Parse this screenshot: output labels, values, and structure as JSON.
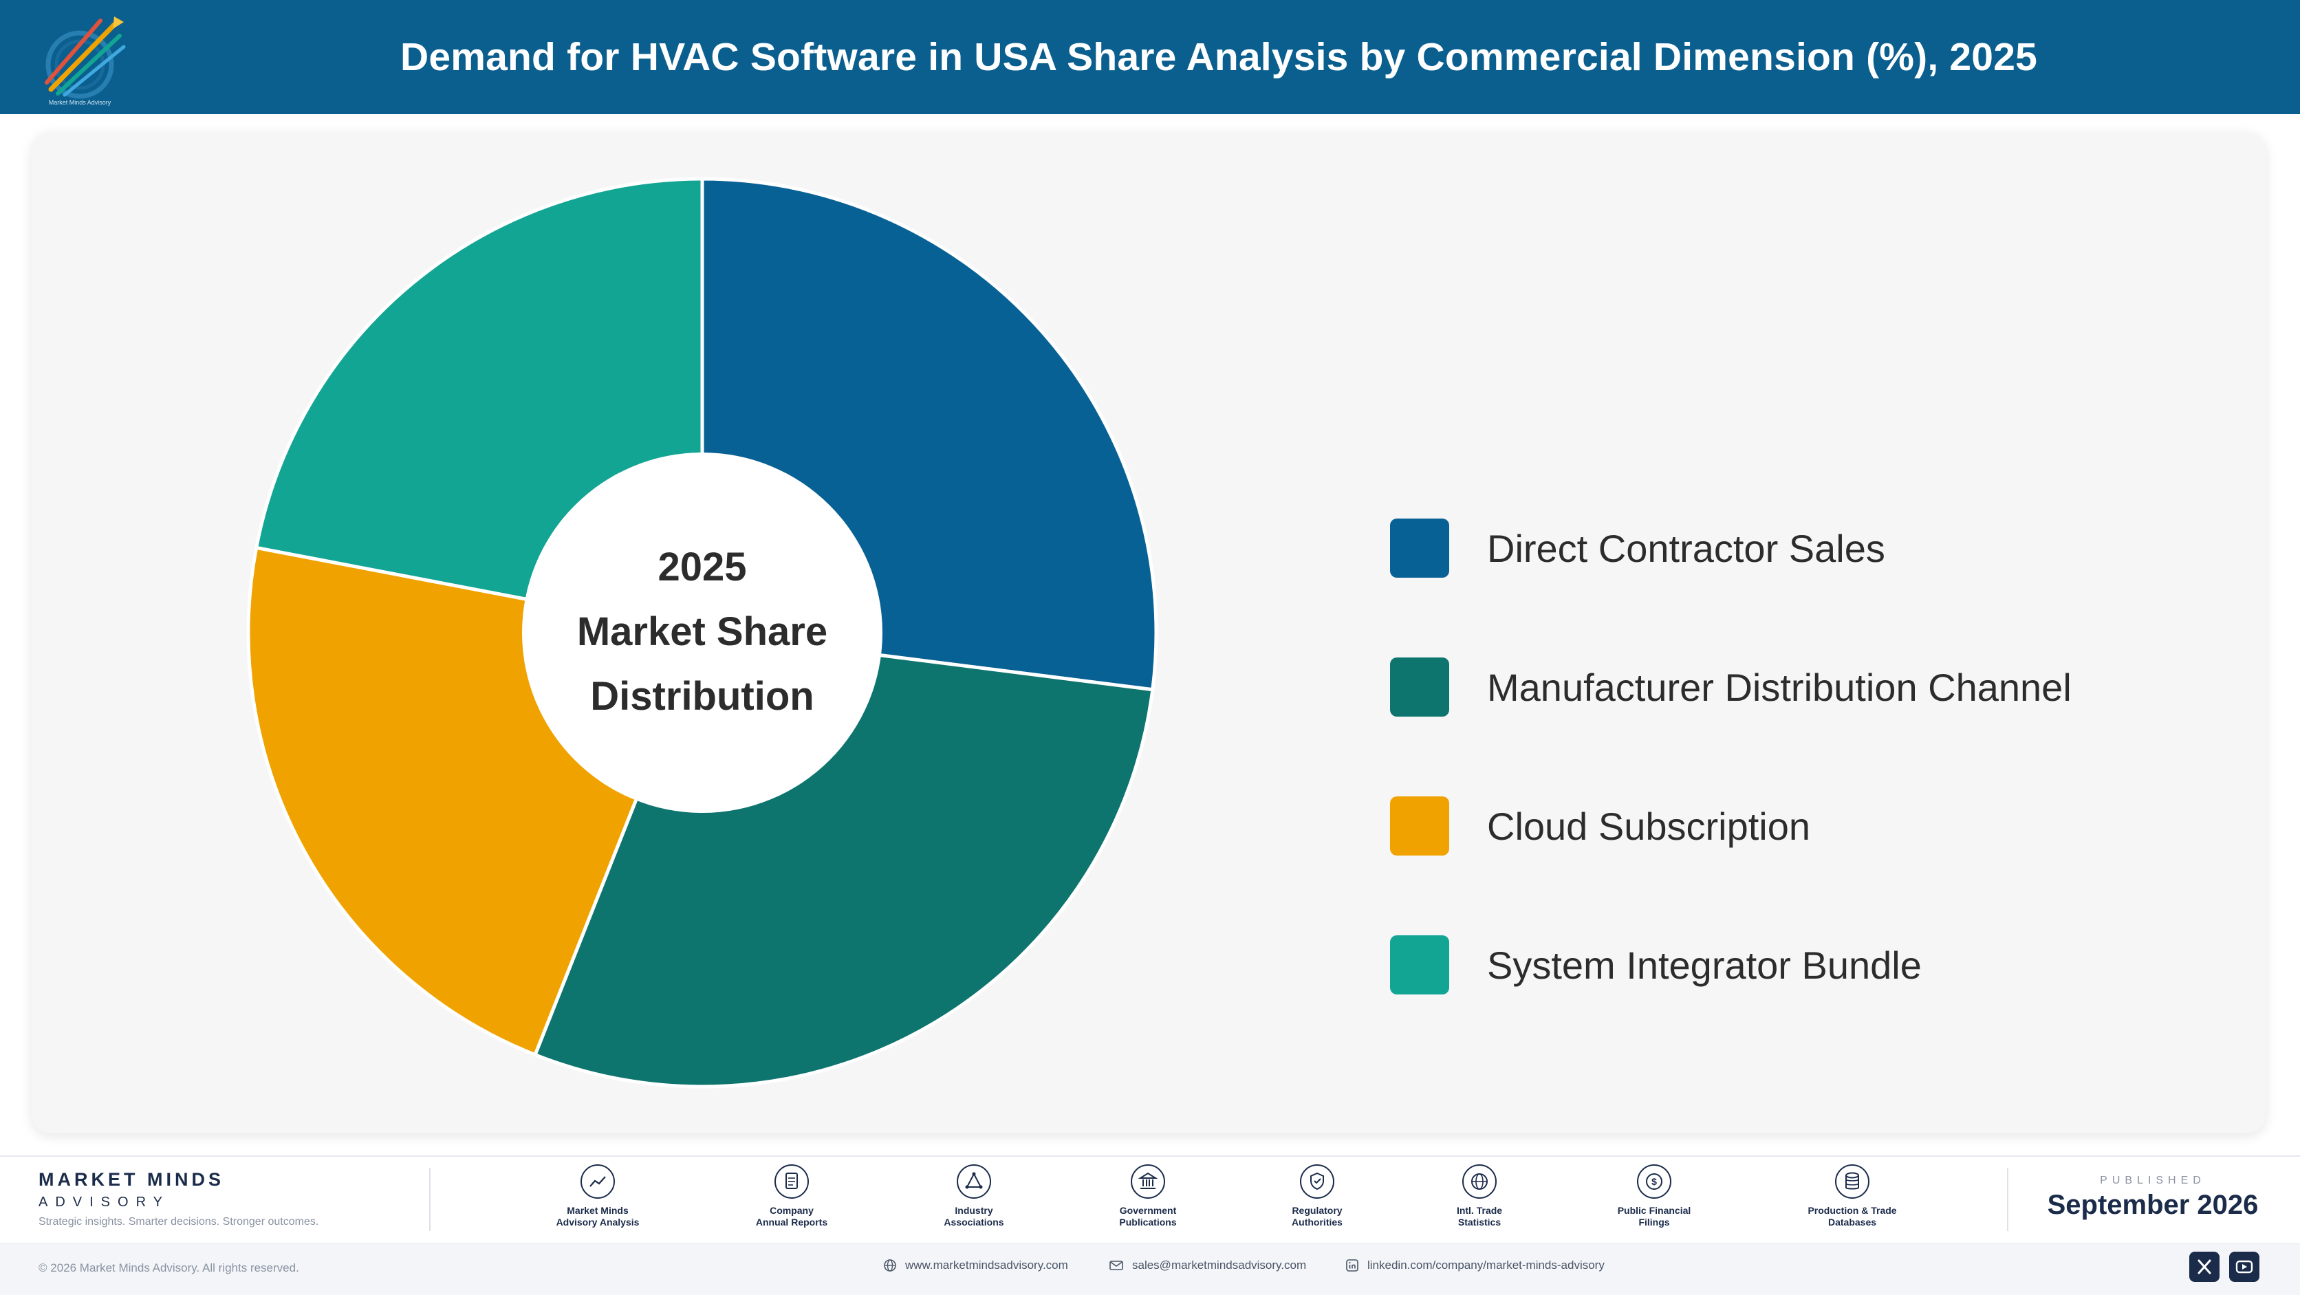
{
  "header": {
    "title": "Demand for HVAC Software in USA Share Analysis by Commercial Dimension (%), 2025",
    "logo_caption": "Market Minds Advisory"
  },
  "chart_data": {
    "type": "pie",
    "title": "Demand for HVAC Software in USA Share Analysis by Commercial Dimension (%), 2025",
    "center_label": [
      "2025",
      "Market Share",
      "Distribution"
    ],
    "legend_position": "right",
    "categories": [
      "Direct Contractor Sales",
      "Manufacturer Distribution Channel",
      "Cloud Subscription",
      "System Integrator Bundle"
    ],
    "values": [
      27,
      29,
      22,
      22
    ],
    "colors": [
      "#086194",
      "#0d746e",
      "#f0a300",
      "#12a594"
    ]
  },
  "footer": {
    "brand_name": "MARKET MINDS",
    "brand_sub": "ADVISORY",
    "brand_tagline": "Strategic insights. Smarter decisions. Stronger outcomes.",
    "sources": [
      {
        "label": "Market Minds\nAdvisory Analysis",
        "icon": "trend-chart-icon"
      },
      {
        "label": "Company\nAnnual Reports",
        "icon": "document-icon"
      },
      {
        "label": "Industry\nAssociations",
        "icon": "network-icon"
      },
      {
        "label": "Government\nPublications",
        "icon": "government-building-icon"
      },
      {
        "label": "Regulatory\nAuthorities",
        "icon": "shield-check-icon"
      },
      {
        "label": "Intl. Trade\nStatistics",
        "icon": "globe-icon"
      },
      {
        "label": "Public Financial\nFilings",
        "icon": "dollar-coin-icon"
      },
      {
        "label": "Production & Trade\nDatabases",
        "icon": "database-icon"
      }
    ],
    "published_label": "PUBLISHED",
    "published_date": "September 2026",
    "copyright": "© 2026 Market Minds Advisory. All rights reserved.",
    "website": "www.marketmindsadvisory.com",
    "email": "sales@marketmindsadvisory.com",
    "linkedin": "linkedin.com/company/market-minds-advisory"
  }
}
